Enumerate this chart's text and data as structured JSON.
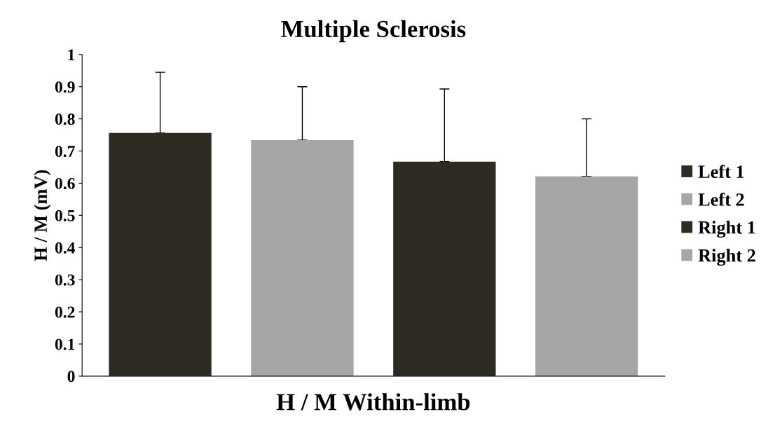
{
  "chart_data": {
    "type": "bar",
    "title": "Multiple Sclerosis",
    "xlabel": "H / M Within-limb",
    "ylabel": "H / M (mV)",
    "categories": [
      null
    ],
    "series": [
      {
        "name": "Left 1",
        "color": "#2e2b22",
        "values": [
          0.756
        ],
        "errors": [
          [
            0.756,
            0.945
          ]
        ]
      },
      {
        "name": "Left 2",
        "color": "#a6a6a6",
        "values": [
          0.734
        ],
        "errors": [
          [
            0.734,
            0.9
          ]
        ]
      },
      {
        "name": "Right 1",
        "color": "#2e2b22",
        "values": [
          0.667
        ],
        "errors": [
          [
            0.667,
            0.893
          ]
        ]
      },
      {
        "name": "Right 2",
        "color": "#a6a6a6",
        "values": [
          0.621
        ],
        "errors": [
          [
            0.621,
            0.8
          ]
        ]
      }
    ],
    "ylim": [
      0,
      1
    ],
    "yticks": [
      0,
      0.1,
      0.2,
      0.3,
      0.4,
      0.5,
      0.6,
      0.7,
      0.8,
      0.9,
      1
    ],
    "grid": false,
    "legend": "right"
  }
}
